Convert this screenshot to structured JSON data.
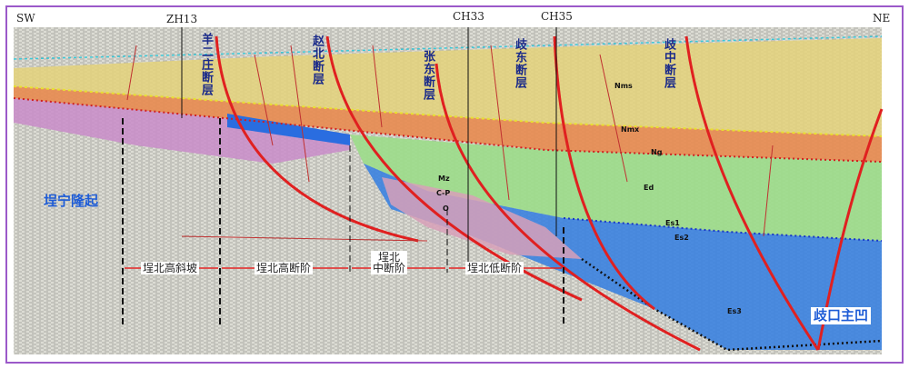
{
  "directions": {
    "left": "SW",
    "right": "NE"
  },
  "wells": [
    {
      "label": "ZH13"
    },
    {
      "label": "CH33"
    },
    {
      "label": "CH35"
    }
  ],
  "faults": [
    {
      "label": "羊二庄断层"
    },
    {
      "label": "赵北断层"
    },
    {
      "label": "张东断层"
    },
    {
      "label": "歧东断层"
    },
    {
      "label": "歧中断层"
    }
  ],
  "layers": [
    {
      "label": "Nms"
    },
    {
      "label": "Nmx"
    },
    {
      "label": "Ng"
    },
    {
      "label": "Ed"
    },
    {
      "label": "Es1"
    },
    {
      "label": "Es2"
    },
    {
      "label": "Es3"
    },
    {
      "label": "Mz"
    },
    {
      "label": "C-P"
    },
    {
      "label": "O"
    }
  ],
  "regions": [
    {
      "label": "埕宁隆起"
    },
    {
      "label": "歧口主凹"
    }
  ],
  "zones": [
    {
      "lines": [
        "埕北高斜坡"
      ]
    },
    {
      "lines": [
        "埕北高断阶"
      ]
    },
    {
      "lines": [
        "埕北",
        "中断阶"
      ]
    },
    {
      "lines": [
        "埕北低断阶"
      ]
    }
  ]
}
